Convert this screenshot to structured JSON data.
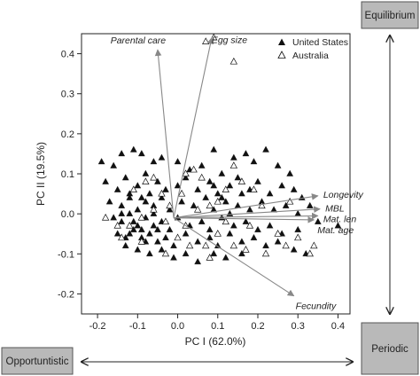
{
  "chart_data": {
    "type": "scatter",
    "xlabel": "PC I (62.0%)",
    "ylabel": "PC II (19.5%)",
    "xlim": [
      -0.24,
      0.43
    ],
    "ylim": [
      -0.25,
      0.45
    ],
    "xticks": [
      "-0.2",
      "-0.1",
      "0.0",
      "0.1",
      "0.2",
      "0.3",
      "0.4"
    ],
    "yticks": [
      "-0.2",
      "-0.1",
      "0.0",
      "0.1",
      "0.2",
      "0.3",
      "0.4"
    ],
    "legend": {
      "position": "top-right",
      "entries": [
        {
          "label": "United States",
          "marker": "filled-triangle"
        },
        {
          "label": "Australia",
          "marker": "open-triangle"
        }
      ]
    },
    "series": [
      {
        "name": "United States",
        "marker": "filled-triangle",
        "points": [
          [
            -0.19,
            0.13
          ],
          [
            -0.16,
            0.12
          ],
          [
            -0.14,
            0.15
          ],
          [
            -0.11,
            0.16
          ],
          [
            -0.09,
            0.15
          ],
          [
            -0.06,
            0.13
          ],
          [
            -0.04,
            0.14
          ],
          [
            0.0,
            0.13
          ],
          [
            0.03,
            0.11
          ],
          [
            0.06,
            0.12
          ],
          [
            0.09,
            0.16
          ],
          [
            0.11,
            0.1
          ],
          [
            0.14,
            0.14
          ],
          [
            0.17,
            0.15
          ],
          [
            0.19,
            0.13
          ],
          [
            0.22,
            0.16
          ],
          [
            0.25,
            0.12
          ],
          [
            0.28,
            0.1
          ],
          [
            -0.18,
            0.08
          ],
          [
            -0.15,
            0.06
          ],
          [
            -0.13,
            0.09
          ],
          [
            -0.1,
            0.07
          ],
          [
            -0.08,
            0.1
          ],
          [
            -0.05,
            0.08
          ],
          [
            -0.03,
            0.06
          ],
          [
            0.0,
            0.07
          ],
          [
            0.02,
            0.09
          ],
          [
            0.05,
            0.06
          ],
          [
            0.08,
            0.08
          ],
          [
            0.1,
            0.05
          ],
          [
            0.13,
            0.07
          ],
          [
            0.15,
            0.09
          ],
          [
            0.18,
            0.06
          ],
          [
            0.2,
            0.08
          ],
          [
            0.23,
            0.05
          ],
          [
            0.26,
            0.07
          ],
          [
            0.29,
            0.06
          ],
          [
            0.31,
            0.04
          ],
          [
            0.33,
            0.02
          ],
          [
            -0.17,
            0.03
          ],
          [
            -0.14,
            0.02
          ],
          [
            -0.12,
            0.04
          ],
          [
            -0.1,
            0.01
          ],
          [
            -0.08,
            0.03
          ],
          [
            -0.06,
            0.02
          ],
          [
            -0.04,
            0.04
          ],
          [
            -0.02,
            0.01
          ],
          [
            0.01,
            0.03
          ],
          [
            0.04,
            0.02
          ],
          [
            0.07,
            0.04
          ],
          [
            0.09,
            0.01
          ],
          [
            0.12,
            0.03
          ],
          [
            0.15,
            0.02
          ],
          [
            0.18,
            0.01
          ],
          [
            0.21,
            0.03
          ],
          [
            0.24,
            0.01
          ],
          [
            0.27,
            0.02
          ],
          [
            0.3,
            0.0
          ],
          [
            0.35,
            -0.02
          ],
          [
            0.4,
            -0.03
          ],
          [
            -0.16,
            -0.01
          ],
          [
            -0.14,
            -0.02
          ],
          [
            -0.12,
            0.0
          ],
          [
            -0.1,
            -0.03
          ],
          [
            -0.08,
            -0.01
          ],
          [
            -0.06,
            -0.03
          ],
          [
            -0.04,
            -0.02
          ],
          [
            -0.02,
            -0.04
          ],
          [
            0.0,
            -0.01
          ],
          [
            0.03,
            -0.03
          ],
          [
            0.06,
            -0.02
          ],
          [
            0.08,
            -0.04
          ],
          [
            0.11,
            -0.01
          ],
          [
            0.14,
            -0.03
          ],
          [
            0.17,
            -0.02
          ],
          [
            0.2,
            -0.04
          ],
          [
            0.23,
            -0.03
          ],
          [
            0.26,
            -0.05
          ],
          [
            0.3,
            -0.04
          ],
          [
            -0.15,
            -0.05
          ],
          [
            -0.13,
            -0.06
          ],
          [
            -0.11,
            -0.04
          ],
          [
            -0.09,
            -0.06
          ],
          [
            -0.07,
            -0.05
          ],
          [
            -0.05,
            -0.07
          ],
          [
            -0.03,
            -0.06
          ],
          [
            -0.01,
            -0.08
          ],
          [
            0.02,
            -0.05
          ],
          [
            0.05,
            -0.07
          ],
          [
            0.08,
            -0.06
          ],
          [
            0.1,
            -0.08
          ],
          [
            0.13,
            -0.05
          ],
          [
            0.16,
            -0.07
          ],
          [
            0.19,
            -0.06
          ],
          [
            0.22,
            -0.08
          ],
          [
            0.25,
            -0.07
          ],
          [
            -0.13,
            -0.08
          ],
          [
            -0.1,
            -0.09
          ],
          [
            -0.07,
            -0.1
          ],
          [
            -0.04,
            -0.09
          ],
          [
            -0.01,
            -0.11
          ],
          [
            0.02,
            -0.1
          ],
          [
            0.05,
            -0.12
          ],
          [
            0.09,
            -0.1
          ],
          [
            0.12,
            -0.11
          ],
          [
            0.16,
            -0.1
          ],
          [
            0.29,
            -0.09
          ],
          [
            0.32,
            -0.1
          ],
          [
            -0.12,
            0.05
          ],
          [
            -0.09,
            0.04
          ],
          [
            -0.07,
            0.05
          ],
          [
            -0.11,
            -0.02
          ],
          [
            -0.09,
            -0.04
          ],
          [
            -0.08,
            -0.07
          ],
          [
            -0.06,
            0.0
          ],
          [
            -0.05,
            -0.04
          ],
          [
            -0.12,
            -0.05
          ],
          [
            -0.14,
            0.0
          ],
          [
            0.09,
            0.07
          ],
          [
            0.11,
            0.04
          ],
          [
            0.13,
            0.0
          ],
          [
            0.16,
            0.05
          ]
        ]
      },
      {
        "name": "Australia",
        "marker": "open-triangle",
        "points": [
          [
            0.09,
            0.44
          ],
          [
            0.07,
            0.43
          ],
          [
            0.14,
            0.38
          ],
          [
            0.04,
            0.11
          ],
          [
            0.02,
            0.1
          ],
          [
            0.19,
            0.06
          ],
          [
            0.16,
            0.08
          ],
          [
            0.08,
            0.02
          ],
          [
            0.05,
            0.01
          ],
          [
            0.12,
            -0.02
          ],
          [
            0.1,
            -0.05
          ],
          [
            0.02,
            -0.03
          ],
          [
            -0.0,
            -0.06
          ],
          [
            -0.03,
            -0.02
          ],
          [
            -0.06,
            0.01
          ],
          [
            -0.09,
            -0.01
          ],
          [
            -0.12,
            -0.03
          ],
          [
            -0.14,
            -0.06
          ],
          [
            -0.18,
            -0.01
          ],
          [
            -0.11,
            0.06
          ],
          [
            -0.08,
            0.08
          ],
          [
            -0.04,
            0.05
          ],
          [
            0.01,
            0.05
          ],
          [
            0.06,
            0.09
          ],
          [
            0.14,
            0.12
          ],
          [
            0.21,
            0.02
          ],
          [
            0.25,
            -0.05
          ],
          [
            0.27,
            -0.08
          ],
          [
            0.34,
            -0.08
          ],
          [
            0.33,
            -0.1
          ],
          [
            0.14,
            -0.08
          ],
          [
            0.08,
            -0.11
          ],
          [
            0.03,
            -0.08
          ],
          [
            -0.03,
            -0.1
          ],
          [
            -0.09,
            -0.07
          ],
          [
            -0.15,
            -0.03
          ],
          [
            0.28,
            0.03
          ],
          [
            0.18,
            -0.03
          ],
          [
            0.22,
            -0.1
          ],
          [
            0.07,
            -0.08
          ],
          [
            -0.02,
            0.02
          ],
          [
            0.1,
            0.03
          ],
          [
            -0.06,
            0.09
          ],
          [
            0.17,
            -0.09
          ],
          [
            0.12,
            0.06
          ],
          [
            0.3,
            -0.06
          ]
        ]
      }
    ],
    "loadings": [
      {
        "label": "Parental care",
        "x": -0.01,
        "y": -0.01,
        "xend": -0.05,
        "yend": 0.41
      },
      {
        "label": "Egg size",
        "x": -0.01,
        "y": -0.01,
        "xend": 0.085,
        "yend": 0.44
      },
      {
        "label": "Longevity",
        "x": -0.01,
        "y": -0.01,
        "xend": 0.35,
        "yend": 0.045
      },
      {
        "label": "MBL",
        "x": -0.01,
        "y": -0.01,
        "xend": 0.355,
        "yend": 0.012
      },
      {
        "label": "Mat. len",
        "x": -0.01,
        "y": -0.01,
        "xend": 0.35,
        "yend": -0.005
      },
      {
        "label": "Mat. age",
        "x": -0.01,
        "y": -0.01,
        "xend": 0.34,
        "yend": -0.015
      },
      {
        "label": "Fecundity",
        "x": -0.01,
        "y": -0.01,
        "xend": 0.29,
        "yend": -0.205
      }
    ]
  },
  "strategy_labels": {
    "equilibrium": "Equilibrium",
    "periodic": "Periodic",
    "opportunistic": "Opportuntistic"
  },
  "colors": {
    "us_marker": "#111111",
    "aus_marker": "#111111",
    "loading_arrow": "#888888",
    "box_fill": "#b9b9b9",
    "box_stroke": "#555555",
    "axis": "#222222"
  }
}
